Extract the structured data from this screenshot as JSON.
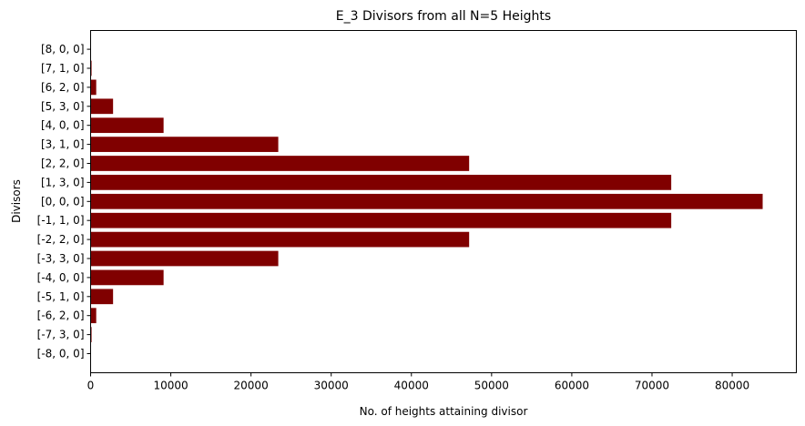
{
  "chart_data": {
    "type": "bar",
    "orientation": "horizontal",
    "title": "E_3 Divisors from all N=5 Heights",
    "xlabel": "No. of heights attaining divisor",
    "ylabel": "Divisors",
    "categories": [
      "[-8, 0, 0]",
      "[-7, 3, 0]",
      "[-6, 2, 0]",
      "[-5, 1, 0]",
      "[-4, 0, 0]",
      "[-3, 3, 0]",
      "[-2, 2, 0]",
      "[-1, 1, 0]",
      "[0, 0, 0]",
      "[1, 3, 0]",
      "[2, 2, 0]",
      "[3, 1, 0]",
      "[4, 0, 0]",
      "[5, 3, 0]",
      "[6, 2, 0]",
      "[7, 1, 0]",
      "[8, 0, 0]"
    ],
    "values": [
      40,
      120,
      700,
      2800,
      9100,
      23400,
      47200,
      72400,
      83800,
      72400,
      47200,
      23400,
      9100,
      2800,
      700,
      120,
      40
    ],
    "xlim": [
      0,
      88000
    ],
    "xticks": [
      0,
      10000,
      20000,
      30000,
      40000,
      50000,
      60000,
      70000,
      80000
    ],
    "color": "#800000",
    "grid": false
  }
}
